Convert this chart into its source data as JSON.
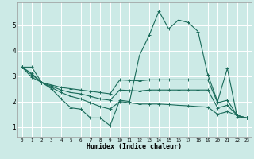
{
  "xlabel": "Humidex (Indice chaleur)",
  "bg_color": "#cceae6",
  "grid_color": "#ffffff",
  "line_color": "#1a6b5a",
  "xlim": [
    -0.5,
    23.5
  ],
  "ylim": [
    0.6,
    5.9
  ],
  "yticks": [
    1,
    2,
    3,
    4,
    5
  ],
  "xticks": [
    0,
    1,
    2,
    3,
    4,
    5,
    6,
    7,
    8,
    9,
    10,
    11,
    12,
    13,
    14,
    15,
    16,
    17,
    18,
    19,
    20,
    21,
    22,
    23
  ],
  "series": [
    {
      "x": [
        0,
        1,
        2,
        3,
        4,
        5,
        6,
        7,
        8,
        9,
        10,
        11,
        12,
        13,
        14,
        15,
        16,
        17,
        18,
        19,
        20,
        21,
        22,
        23
      ],
      "y": [
        3.35,
        3.35,
        2.75,
        2.5,
        2.1,
        1.75,
        1.7,
        1.35,
        1.35,
        1.05,
        2.05,
        2.0,
        3.8,
        4.6,
        5.55,
        4.85,
        5.2,
        5.1,
        4.75,
        3.05,
        2.0,
        3.3,
        1.4,
        1.35
      ]
    },
    {
      "x": [
        0,
        1,
        2,
        3,
        4,
        5,
        6,
        7,
        8,
        9,
        10,
        11,
        12,
        13,
        14,
        15,
        16,
        17,
        18,
        19,
        20,
        21,
        22,
        23
      ],
      "y": [
        3.35,
        3.1,
        2.75,
        2.65,
        2.55,
        2.5,
        2.45,
        2.4,
        2.35,
        2.3,
        2.85,
        2.83,
        2.81,
        2.85,
        2.85,
        2.85,
        2.85,
        2.85,
        2.85,
        2.85,
        1.95,
        2.05,
        1.45,
        1.35
      ]
    },
    {
      "x": [
        0,
        1,
        2,
        3,
        4,
        5,
        6,
        7,
        8,
        9,
        10,
        11,
        12,
        13,
        14,
        15,
        16,
        17,
        18,
        19,
        20,
        21,
        22,
        23
      ],
      "y": [
        3.35,
        3.05,
        2.75,
        2.6,
        2.45,
        2.35,
        2.3,
        2.2,
        2.1,
        2.05,
        2.45,
        2.43,
        2.41,
        2.45,
        2.45,
        2.45,
        2.45,
        2.45,
        2.45,
        2.45,
        1.75,
        1.85,
        1.45,
        1.35
      ]
    },
    {
      "x": [
        0,
        1,
        2,
        3,
        4,
        5,
        6,
        7,
        8,
        9,
        10,
        11,
        12,
        13,
        14,
        15,
        16,
        17,
        18,
        19,
        20,
        21,
        22,
        23
      ],
      "y": [
        3.35,
        2.95,
        2.75,
        2.55,
        2.35,
        2.2,
        2.1,
        1.95,
        1.8,
        1.7,
        2.0,
        1.95,
        1.9,
        1.9,
        1.9,
        1.88,
        1.85,
        1.83,
        1.8,
        1.78,
        1.5,
        1.6,
        1.45,
        1.35
      ]
    }
  ]
}
